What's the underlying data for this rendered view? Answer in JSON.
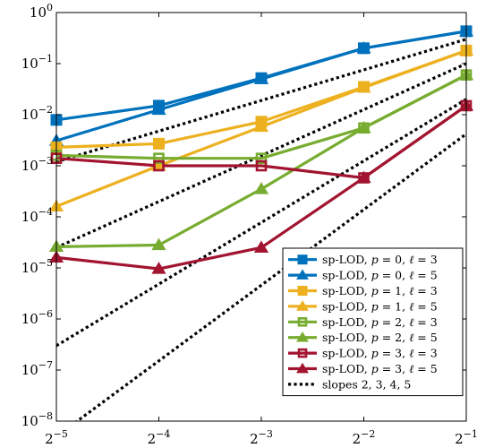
{
  "chart_data": {
    "type": "line",
    "title": "",
    "xlabel": "",
    "ylabel": "",
    "x_scale": "log2",
    "y_scale": "log10",
    "x": [
      0.03125,
      0.0625,
      0.125,
      0.25,
      0.5
    ],
    "x_ticks": [
      {
        "value": 0.03125,
        "base": "2",
        "exp": "−5"
      },
      {
        "value": 0.0625,
        "base": "2",
        "exp": "−4"
      },
      {
        "value": 0.125,
        "base": "2",
        "exp": "−3"
      },
      {
        "value": 0.25,
        "base": "2",
        "exp": "−2"
      },
      {
        "value": 0.5,
        "base": "2",
        "exp": "−1"
      }
    ],
    "y_ticks": [
      {
        "value": 1e-08,
        "base": "10",
        "exp": "−8"
      },
      {
        "value": 1e-07,
        "base": "10",
        "exp": "−7"
      },
      {
        "value": 1e-06,
        "base": "10",
        "exp": "−6"
      },
      {
        "value": 1e-05,
        "base": "10",
        "exp": "−5"
      },
      {
        "value": 0.0001,
        "base": "10",
        "exp": "−4"
      },
      {
        "value": 0.001,
        "base": "10",
        "exp": "−3"
      },
      {
        "value": 0.01,
        "base": "10",
        "exp": "−2"
      },
      {
        "value": 0.1,
        "base": "10",
        "exp": "−1"
      },
      {
        "value": 1,
        "base": "10",
        "exp": "0"
      }
    ],
    "xlim": [
      0.03125,
      0.5
    ],
    "ylim": [
      1e-08,
      1
    ],
    "grid": false,
    "legend_position": "bottom-right",
    "series": [
      {
        "name": "sp-LOD, p = 0, ℓ = 3",
        "legend": {
          "prefix": "sp-LOD, ",
          "p": "0",
          "l": "3"
        },
        "color": "#0072bd",
        "marker": "square",
        "filled": true,
        "values": [
          0.0079,
          0.015,
          0.052,
          0.2,
          0.43
        ]
      },
      {
        "name": "sp-LOD, p = 0, ℓ = 5",
        "legend": {
          "prefix": "sp-LOD, ",
          "p": "0",
          "l": "5"
        },
        "color": "#0072bd",
        "marker": "triangle",
        "filled": true,
        "values": [
          0.0031,
          0.0125,
          0.05,
          0.2,
          0.43
        ]
      },
      {
        "name": "sp-LOD, p = 1, ℓ = 3",
        "legend": {
          "prefix": "sp-LOD, ",
          "p": "1",
          "l": "3"
        },
        "color": "#edb120",
        "marker": "square",
        "filled": true,
        "values": [
          0.0023,
          0.0027,
          0.0073,
          0.035,
          0.18
        ]
      },
      {
        "name": "sp-LOD, p = 1, ℓ = 5",
        "legend": {
          "prefix": "sp-LOD, ",
          "p": "1",
          "l": "5"
        },
        "color": "#edb120",
        "marker": "triangle",
        "filled": true,
        "values": [
          0.00016,
          0.001,
          0.0058,
          0.034,
          0.18
        ]
      },
      {
        "name": "sp-LOD, p = 2, ℓ = 3",
        "legend": {
          "prefix": "sp-LOD, ",
          "p": "2",
          "l": "3"
        },
        "color": "#77ac30",
        "marker": "square",
        "filled": false,
        "values": [
          0.0016,
          0.0014,
          0.0014,
          0.0055,
          0.06
        ]
      },
      {
        "name": "sp-LOD, p = 2, ℓ = 5",
        "legend": {
          "prefix": "sp-LOD, ",
          "p": "2",
          "l": "5"
        },
        "color": "#77ac30",
        "marker": "triangle",
        "filled": true,
        "values": [
          2.6e-05,
          2.8e-05,
          0.00035,
          0.0055,
          0.06
        ]
      },
      {
        "name": "sp-LOD, p = 3, ℓ = 3",
        "legend": {
          "prefix": "sp-LOD, ",
          "p": "3",
          "l": "3"
        },
        "color": "#a2142f",
        "marker": "square",
        "filled": false,
        "values": [
          0.0014,
          0.001,
          0.001,
          0.00058,
          0.015
        ]
      },
      {
        "name": "sp-LOD, p = 3, ℓ = 5",
        "legend": {
          "prefix": "sp-LOD, ",
          "p": "3",
          "l": "5"
        },
        "color": "#a2142f",
        "marker": "triangle",
        "filled": true,
        "values": [
          1.6e-05,
          9.6e-06,
          2.5e-05,
          0.00058,
          0.015
        ]
      }
    ],
    "reference_lines": {
      "name": "slopes 2, 3, 4, 5",
      "color": "#000000",
      "style": "dotted",
      "lines": [
        {
          "slope": 2,
          "points": [
            [
              0.03125,
              0.0012
            ],
            [
              0.5,
              0.3
            ]
          ]
        },
        {
          "slope": 3,
          "points": [
            [
              0.03125,
              2.5e-05
            ],
            [
              0.5,
              0.1
            ]
          ]
        },
        {
          "slope": 4,
          "points": [
            [
              0.03125,
              3e-07
            ],
            [
              0.5,
              0.02
            ]
          ]
        },
        {
          "slope": 5,
          "points": [
            [
              0.03125,
              5e-09
            ],
            [
              0.5,
              0.0042
            ]
          ]
        }
      ]
    }
  }
}
